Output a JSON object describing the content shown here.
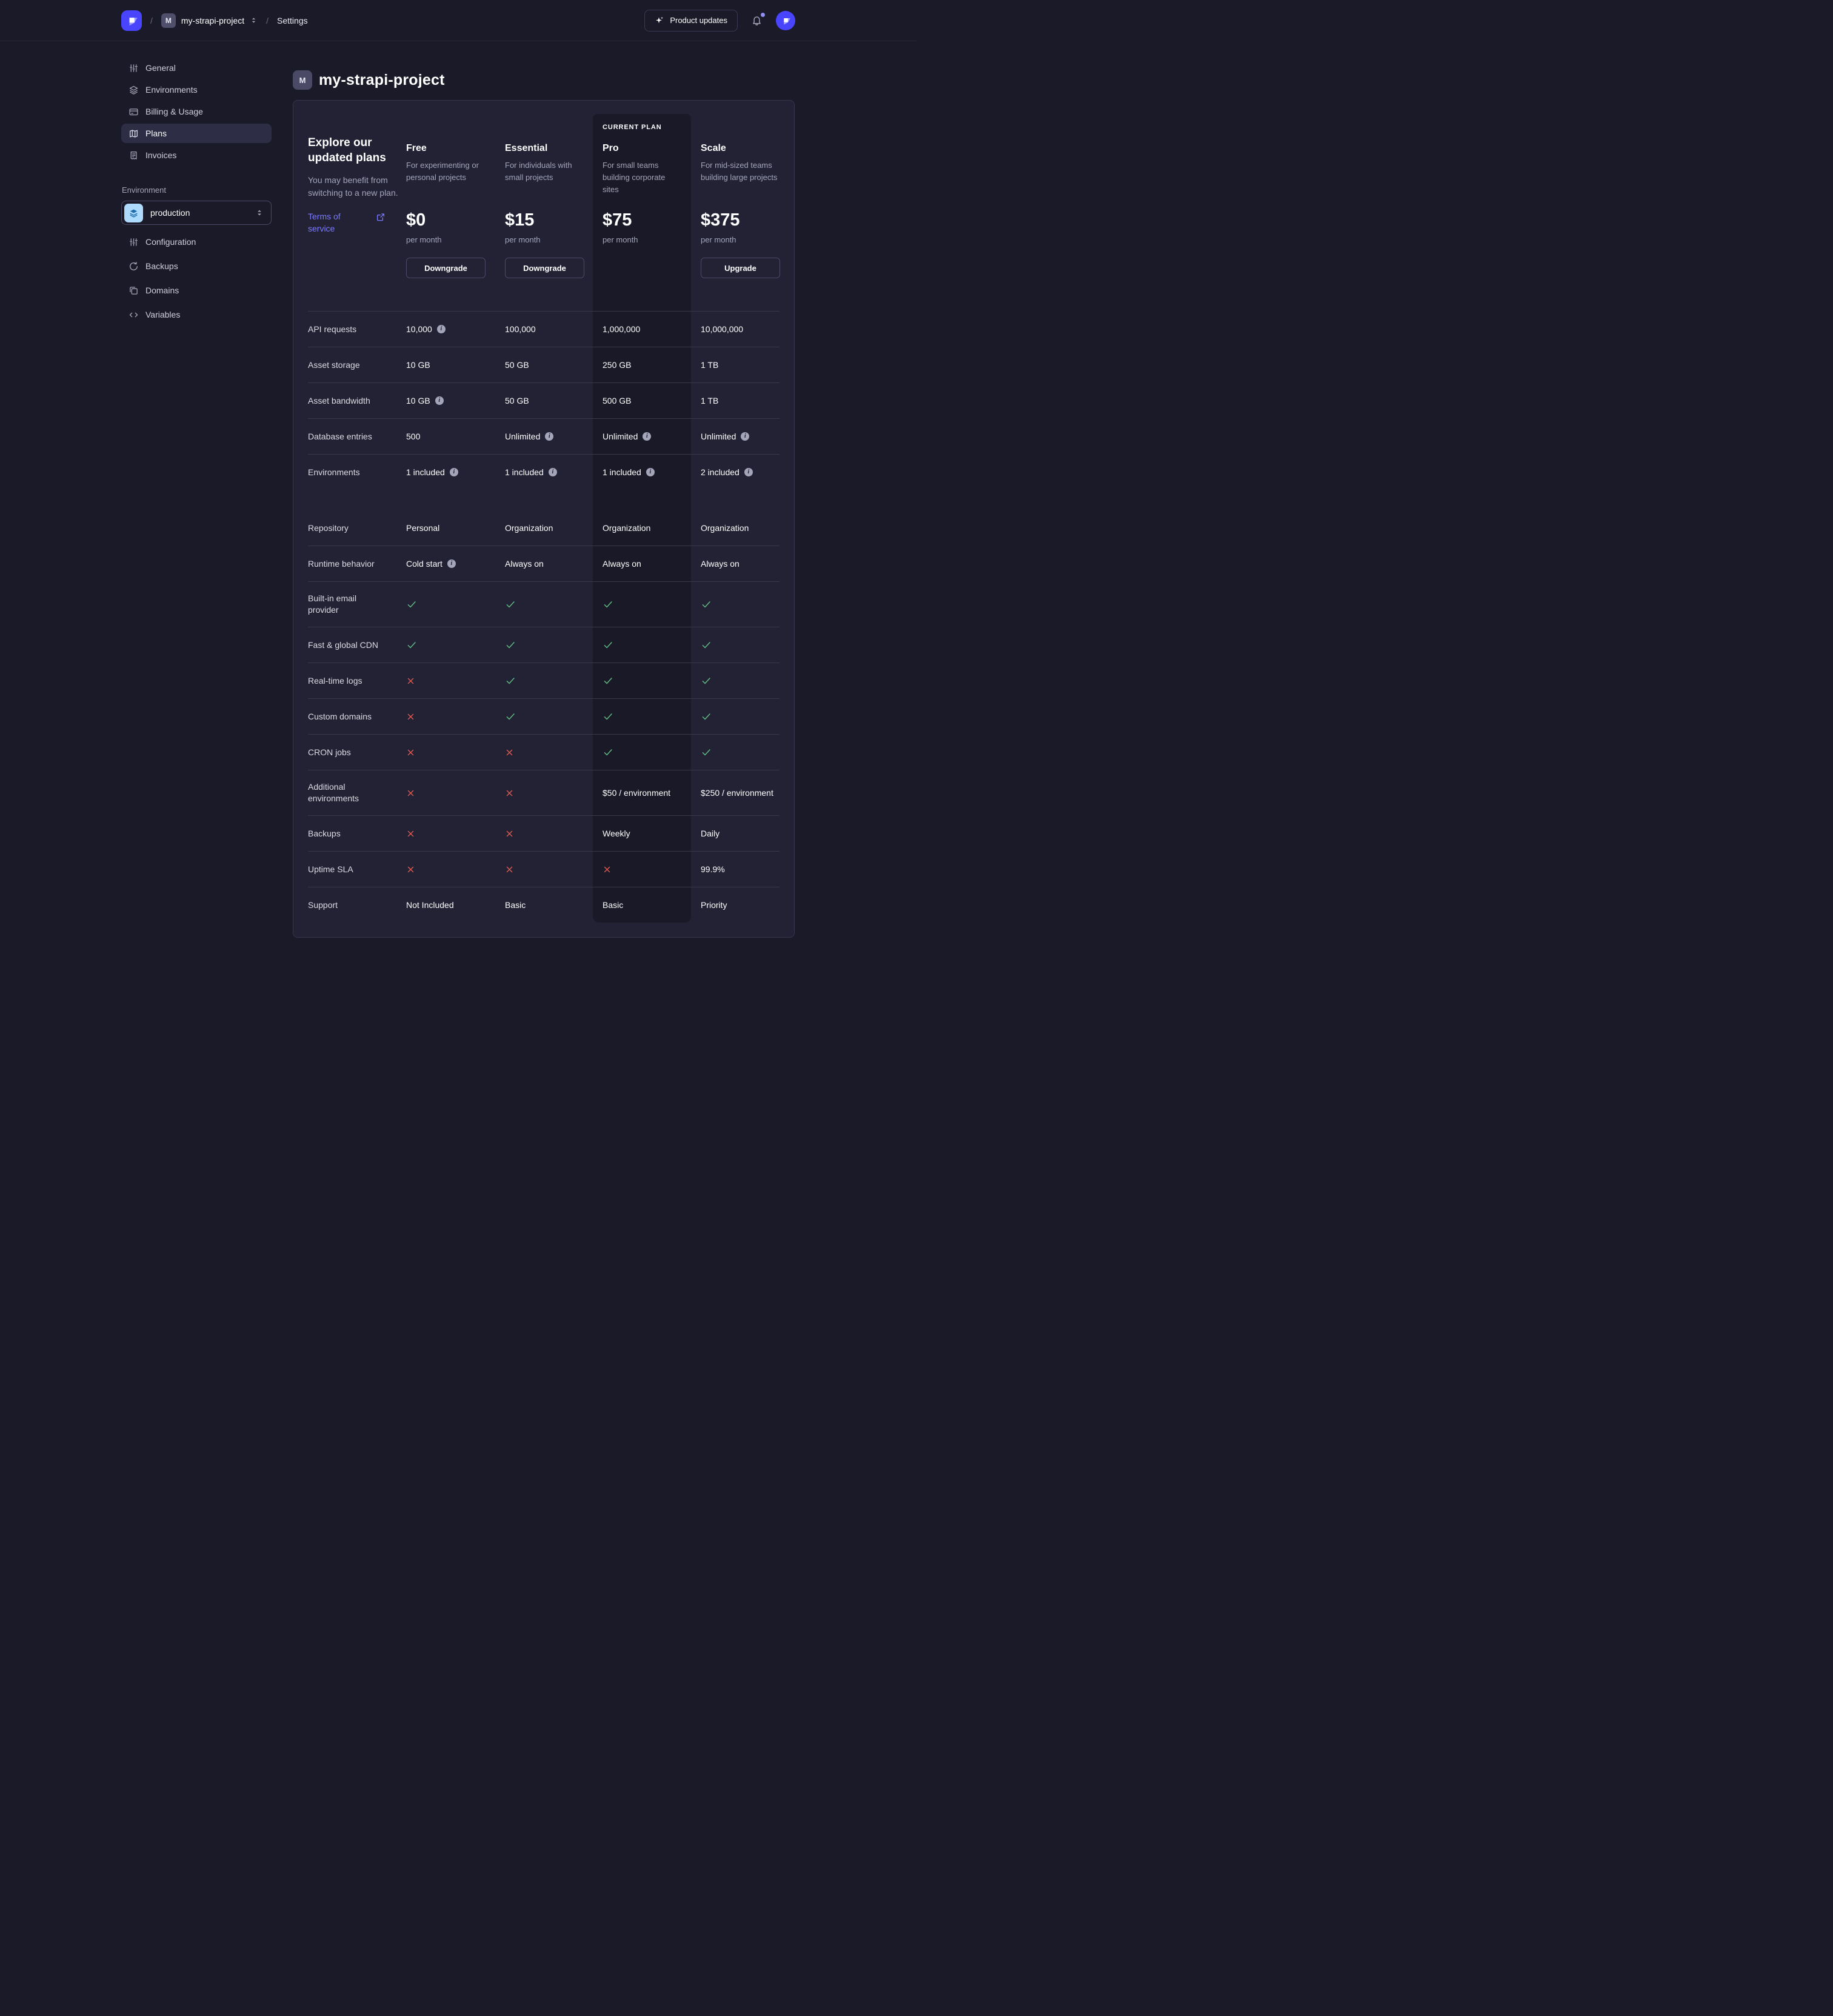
{
  "colors": {
    "accent": "#4945ff",
    "link": "#7b79ff",
    "success": "#62bd85",
    "danger": "#ee5e52",
    "card_bg": "#222234",
    "page_bg": "#1a1a28",
    "current_plan_bg": "#191927",
    "env_badge_bg": "#aedafe"
  },
  "topbar": {
    "separator": "/",
    "project": {
      "badge": "M",
      "name": "my-strapi-project"
    },
    "section": "Settings",
    "product_updates_label": "Product updates"
  },
  "sidebar": {
    "project_items": [
      {
        "label": "General",
        "icon": "sliders-icon",
        "active": false
      },
      {
        "label": "Environments",
        "icon": "layers-icon",
        "active": false
      },
      {
        "label": "Billing & Usage",
        "icon": "credit-card-icon",
        "active": false
      },
      {
        "label": "Plans",
        "icon": "map-icon",
        "active": true
      },
      {
        "label": "Invoices",
        "icon": "receipt-icon",
        "active": false
      }
    ],
    "environment_label": "Environment",
    "environment_select": {
      "value": "production",
      "icon": "layers-icon"
    },
    "environment_items": [
      {
        "label": "Configuration",
        "icon": "sliders-icon"
      },
      {
        "label": "Backups",
        "icon": "refresh-icon"
      },
      {
        "label": "Domains",
        "icon": "copy-icon"
      },
      {
        "label": "Variables",
        "icon": "code-icon"
      }
    ]
  },
  "main": {
    "project_badge": "M",
    "title": "my-strapi-project",
    "plans_card": {
      "intro": {
        "heading": "Explore our updated plans",
        "note": "You may benefit from switching to a new plan.",
        "link_label": "Terms of service"
      },
      "current_plan_label": "CURRENT PLAN",
      "plans": [
        {
          "name": "Free",
          "description": "For experimenting or personal projects",
          "price": "$0",
          "cadence": "per month",
          "action": "Downgrade",
          "current": false
        },
        {
          "name": "Essential",
          "description": "For individuals with small projects",
          "price": "$15",
          "cadence": "per month",
          "action": "Downgrade",
          "current": false
        },
        {
          "name": "Pro",
          "description": "For small teams building corporate sites",
          "price": "$75",
          "cadence": "per month",
          "action": null,
          "current": true
        },
        {
          "name": "Scale",
          "description": "For mid-sized teams building large projects",
          "price": "$375",
          "cadence": "per month",
          "action": "Upgrade",
          "current": false
        }
      ],
      "rows": [
        {
          "label": "API requests",
          "cells": [
            {
              "text": "10,000",
              "info": true
            },
            {
              "text": "100,000"
            },
            {
              "text": "1,000,000"
            },
            {
              "text": "10,000,000"
            }
          ]
        },
        {
          "label": "Asset storage",
          "cells": [
            {
              "text": "10 GB"
            },
            {
              "text": "50 GB"
            },
            {
              "text": "250 GB"
            },
            {
              "text": "1 TB"
            }
          ]
        },
        {
          "label": "Asset bandwidth",
          "cells": [
            {
              "text": "10 GB",
              "info": true
            },
            {
              "text": "50 GB"
            },
            {
              "text": "500 GB"
            },
            {
              "text": "1 TB"
            }
          ]
        },
        {
          "label": "Database entries",
          "cells": [
            {
              "text": "500"
            },
            {
              "text": "Unlimited",
              "info": true
            },
            {
              "text": "Unlimited",
              "info": true
            },
            {
              "text": "Unlimited",
              "info": true
            }
          ]
        },
        {
          "label": "Environments",
          "cells": [
            {
              "text": "1 included",
              "info": true
            },
            {
              "text": "1 included",
              "info": true
            },
            {
              "text": "1 included",
              "info": true
            },
            {
              "text": "2 included",
              "info": true
            }
          ]
        },
        {
          "label": "Repository",
          "spacer_before": true,
          "cells": [
            {
              "text": "Personal"
            },
            {
              "text": "Organization"
            },
            {
              "text": "Organization"
            },
            {
              "text": "Organization"
            }
          ]
        },
        {
          "label": "Runtime behavior",
          "cells": [
            {
              "text": "Cold start",
              "info": true
            },
            {
              "text": "Always on"
            },
            {
              "text": "Always on"
            },
            {
              "text": "Always on"
            }
          ]
        },
        {
          "label": "Built-in email provider",
          "tall": true,
          "cells": [
            {
              "check": true
            },
            {
              "check": true
            },
            {
              "check": true
            },
            {
              "check": true
            }
          ]
        },
        {
          "label": "Fast & global CDN",
          "cells": [
            {
              "check": true
            },
            {
              "check": true
            },
            {
              "check": true
            },
            {
              "check": true
            }
          ]
        },
        {
          "label": "Real-time logs",
          "cells": [
            {
              "cross": true
            },
            {
              "check": true
            },
            {
              "check": true
            },
            {
              "check": true
            }
          ]
        },
        {
          "label": "Custom domains",
          "cells": [
            {
              "cross": true
            },
            {
              "check": true
            },
            {
              "check": true
            },
            {
              "check": true
            }
          ]
        },
        {
          "label": "CRON jobs",
          "cells": [
            {
              "cross": true
            },
            {
              "cross": true
            },
            {
              "check": true
            },
            {
              "check": true
            }
          ]
        },
        {
          "label": "Additional environments",
          "tall": true,
          "cells": [
            {
              "cross": true
            },
            {
              "cross": true
            },
            {
              "text": "$50 / environment"
            },
            {
              "text": "$250 / environment"
            }
          ]
        },
        {
          "label": "Backups",
          "cells": [
            {
              "cross": true
            },
            {
              "cross": true
            },
            {
              "text": "Weekly"
            },
            {
              "text": "Daily"
            }
          ]
        },
        {
          "label": "Uptime SLA",
          "cells": [
            {
              "cross": true
            },
            {
              "cross": true
            },
            {
              "cross": true
            },
            {
              "text": "99.9%"
            }
          ]
        },
        {
          "label": "Support",
          "cells": [
            {
              "text": "Not Included"
            },
            {
              "text": "Basic"
            },
            {
              "text": "Basic"
            },
            {
              "text": "Priority"
            }
          ]
        }
      ]
    }
  }
}
